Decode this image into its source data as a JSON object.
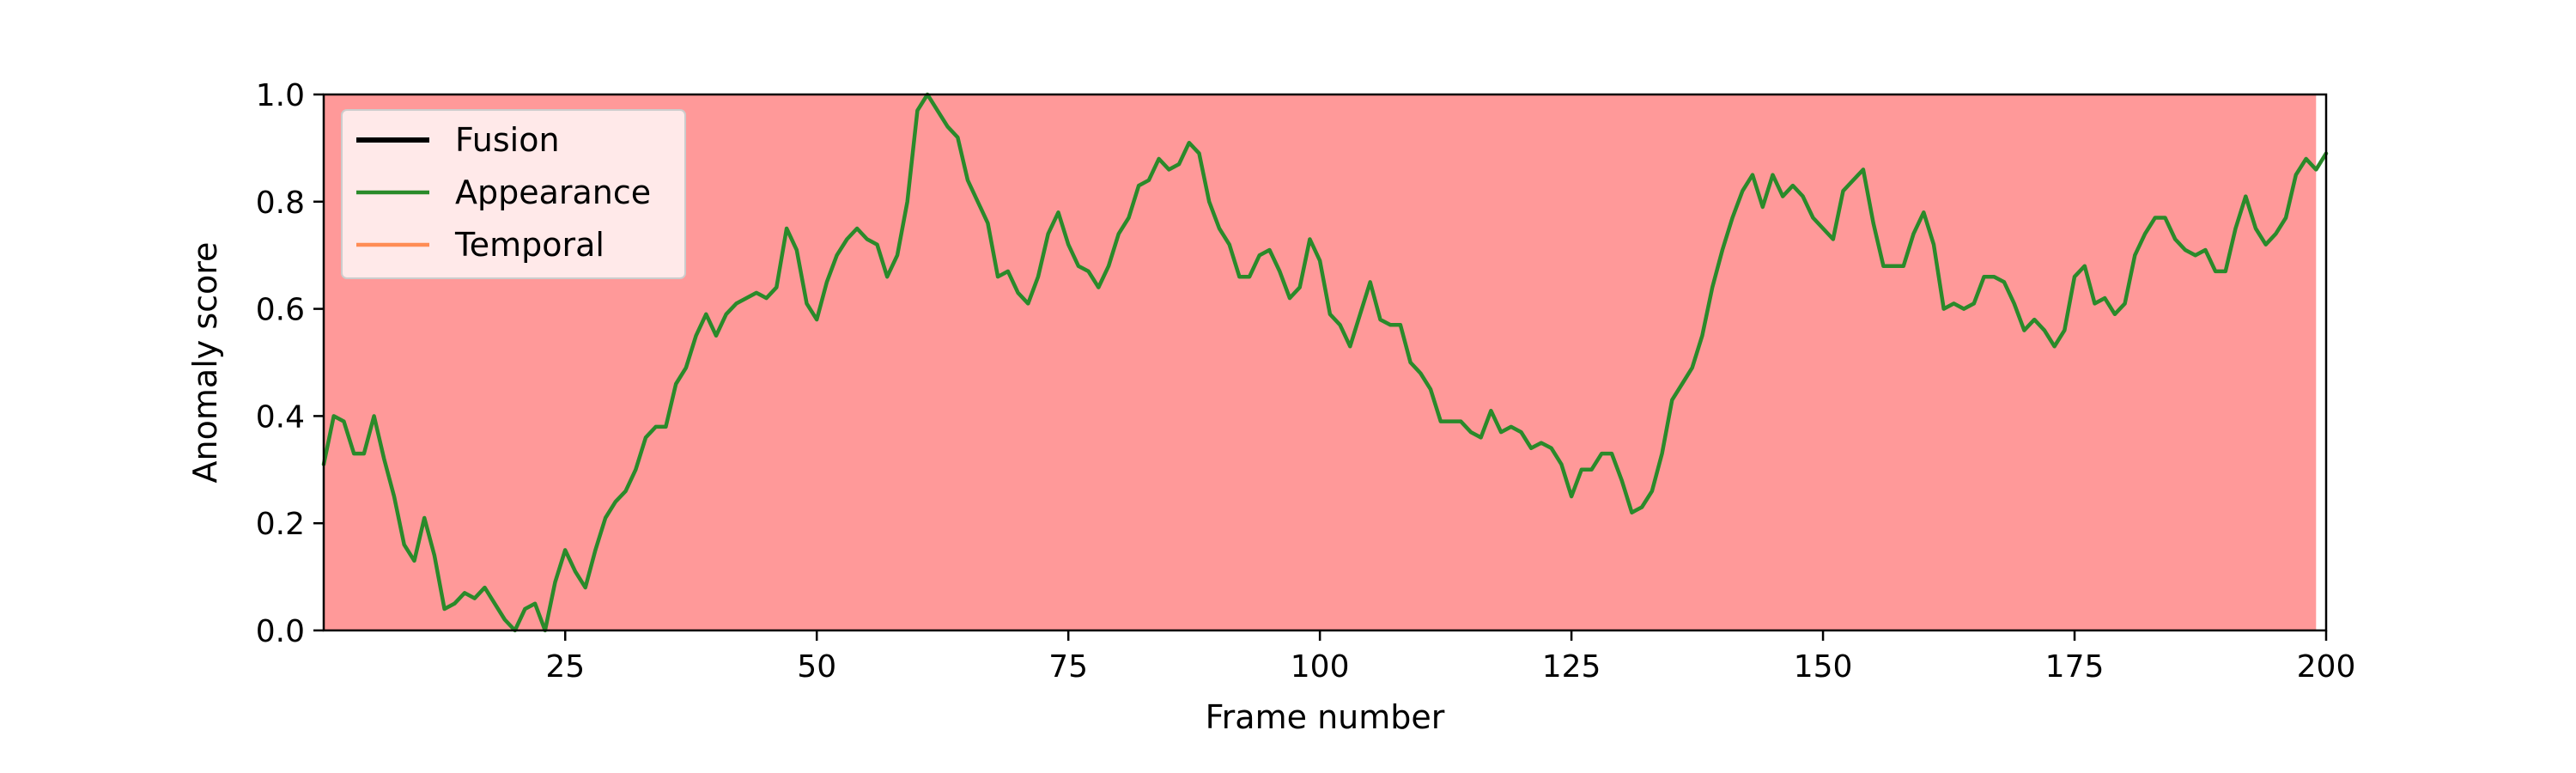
{
  "chart_data": {
    "type": "line",
    "title": "",
    "xlabel": "Frame number",
    "ylabel": "Anomaly score",
    "xlim": [
      1,
      200
    ],
    "ylim": [
      0.0,
      1.0
    ],
    "xticks": [
      25,
      50,
      75,
      100,
      125,
      150,
      175,
      200
    ],
    "yticks": [
      0.0,
      0.2,
      0.4,
      0.6,
      0.8,
      1.0
    ],
    "xtick_labels": [
      "25",
      "50",
      "75",
      "100",
      "125",
      "150",
      "175",
      "200"
    ],
    "ytick_labels": [
      "0.0",
      "0.2",
      "0.4",
      "0.6",
      "0.8",
      "1.0"
    ],
    "grid": false,
    "legend_position": "top-left",
    "shaded_region": {
      "x_start": 1,
      "x_end": 199,
      "color": "#ff9999",
      "label": ""
    },
    "series": [
      {
        "name": "Fusion",
        "color": "#000000",
        "x": [],
        "values": []
      },
      {
        "name": "Appearance",
        "color": "#2a8a2a",
        "x": [
          1,
          2,
          3,
          4,
          5,
          6,
          7,
          8,
          9,
          10,
          11,
          12,
          13,
          14,
          15,
          16,
          17,
          18,
          19,
          20,
          21,
          22,
          23,
          24,
          25,
          26,
          27,
          28,
          29,
          30,
          31,
          32,
          33,
          34,
          35,
          36,
          37,
          38,
          39,
          40,
          41,
          42,
          43,
          44,
          45,
          46,
          47,
          48,
          49,
          50,
          51,
          52,
          53,
          54,
          55,
          56,
          57,
          58,
          59,
          60,
          61,
          62,
          63,
          64,
          65,
          66,
          67,
          68,
          69,
          70,
          71,
          72,
          73,
          74,
          75,
          76,
          77,
          78,
          79,
          80,
          81,
          82,
          83,
          84,
          85,
          86,
          87,
          88,
          89,
          90,
          91,
          92,
          93,
          94,
          95,
          96,
          97,
          98,
          99,
          100,
          101,
          102,
          103,
          104,
          105,
          106,
          107,
          108,
          109,
          110,
          111,
          112,
          113,
          114,
          115,
          116,
          117,
          118,
          119,
          120,
          121,
          122,
          123,
          124,
          125,
          126,
          127,
          128,
          129,
          130,
          131,
          132,
          133,
          134,
          135,
          136,
          137,
          138,
          139,
          140,
          141,
          142,
          143,
          144,
          145,
          146,
          147,
          148,
          149,
          150,
          151,
          152,
          153,
          154,
          155,
          156,
          157,
          158,
          159,
          160,
          161,
          162,
          163,
          164,
          165,
          166,
          167,
          168,
          169,
          170,
          171,
          172,
          173,
          174,
          175,
          176,
          177,
          178,
          179,
          180,
          181,
          182,
          183,
          184,
          185,
          186,
          187,
          188,
          189,
          190,
          191,
          192,
          193,
          194,
          195,
          196,
          197,
          198,
          199,
          200
        ],
        "values": [
          0.31,
          0.4,
          0.39,
          0.33,
          0.33,
          0.4,
          0.32,
          0.25,
          0.16,
          0.13,
          0.21,
          0.14,
          0.04,
          0.05,
          0.07,
          0.06,
          0.08,
          0.05,
          0.02,
          0.0,
          0.04,
          0.05,
          0.0,
          0.09,
          0.15,
          0.11,
          0.08,
          0.15,
          0.21,
          0.24,
          0.26,
          0.3,
          0.36,
          0.38,
          0.38,
          0.46,
          0.49,
          0.55,
          0.59,
          0.55,
          0.59,
          0.61,
          0.62,
          0.63,
          0.62,
          0.64,
          0.75,
          0.71,
          0.61,
          0.58,
          0.65,
          0.7,
          0.73,
          0.75,
          0.73,
          0.72,
          0.66,
          0.7,
          0.8,
          0.97,
          1.0,
          0.97,
          0.94,
          0.92,
          0.84,
          0.8,
          0.76,
          0.66,
          0.67,
          0.63,
          0.61,
          0.66,
          0.74,
          0.78,
          0.72,
          0.68,
          0.67,
          0.64,
          0.68,
          0.74,
          0.77,
          0.83,
          0.84,
          0.88,
          0.86,
          0.87,
          0.91,
          0.89,
          0.8,
          0.75,
          0.72,
          0.66,
          0.66,
          0.7,
          0.71,
          0.67,
          0.62,
          0.64,
          0.73,
          0.69,
          0.59,
          0.57,
          0.53,
          0.59,
          0.65,
          0.58,
          0.57,
          0.57,
          0.5,
          0.48,
          0.45,
          0.39,
          0.39,
          0.39,
          0.37,
          0.36,
          0.41,
          0.37,
          0.38,
          0.37,
          0.34,
          0.35,
          0.34,
          0.31,
          0.25,
          0.3,
          0.3,
          0.33,
          0.33,
          0.28,
          0.22,
          0.23,
          0.26,
          0.33,
          0.43,
          0.46,
          0.49,
          0.55,
          0.64,
          0.71,
          0.77,
          0.82,
          0.85,
          0.79,
          0.85,
          0.81,
          0.83,
          0.81,
          0.77,
          0.75,
          0.73,
          0.82,
          0.84,
          0.86,
          0.76,
          0.68,
          0.68,
          0.68,
          0.74,
          0.78,
          0.72,
          0.6,
          0.61,
          0.6,
          0.61,
          0.66,
          0.66,
          0.65,
          0.61,
          0.56,
          0.58,
          0.56,
          0.53,
          0.56,
          0.66,
          0.68,
          0.61,
          0.62,
          0.59,
          0.61,
          0.7,
          0.74,
          0.77,
          0.77,
          0.73,
          0.71,
          0.7,
          0.71,
          0.67,
          0.67,
          0.75,
          0.81,
          0.75,
          0.72,
          0.74,
          0.77,
          0.85,
          0.88,
          0.86,
          0.89
        ]
      },
      {
        "name": "Temporal",
        "color": "#ff8c55",
        "x": [],
        "values": []
      }
    ]
  }
}
